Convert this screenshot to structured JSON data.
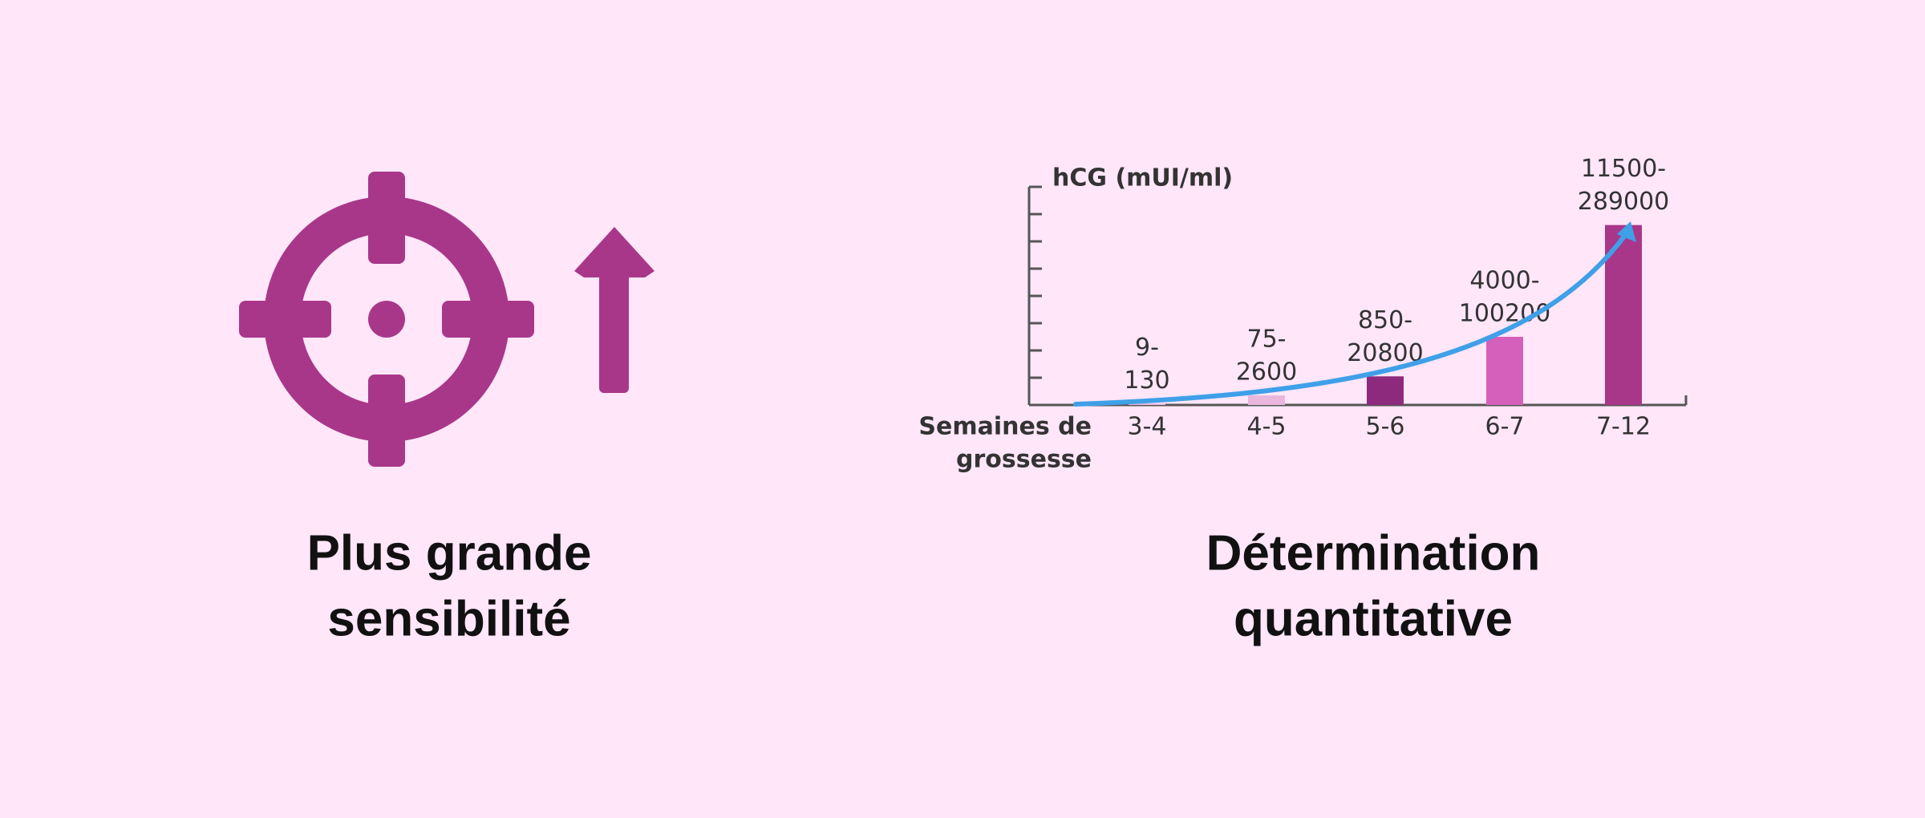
{
  "left": {
    "title": [
      "Plus grande",
      "sensibilité"
    ]
  },
  "right": {
    "title": [
      "Détermination",
      "quantitative"
    ]
  },
  "chart_data": {
    "type": "bar",
    "y_label": "hCG (mUI/ml)",
    "x_label": [
      "Semaines de",
      "grossesse"
    ],
    "categories": [
      "3-4",
      "4-5",
      "5-6",
      "6-7",
      "7-12"
    ],
    "values": [
      0.05,
      0.35,
      1.05,
      2.5,
      6.6
    ],
    "colors": [
      "#e9b6dc",
      "#e9b6dc",
      "#8e2a7d",
      "#d460bb",
      "#a8378a"
    ],
    "range_labels": [
      [
        "9-",
        "130"
      ],
      [
        "75-",
        "2600"
      ],
      [
        "850-",
        "20800"
      ],
      [
        "4000-",
        "100200"
      ],
      [
        "11500-",
        "289000"
      ]
    ],
    "ylim": [
      0,
      8
    ],
    "yticks": [
      0,
      1,
      2,
      3,
      4,
      5,
      6,
      7,
      8
    ],
    "trend_color": "#3fa0e8"
  }
}
